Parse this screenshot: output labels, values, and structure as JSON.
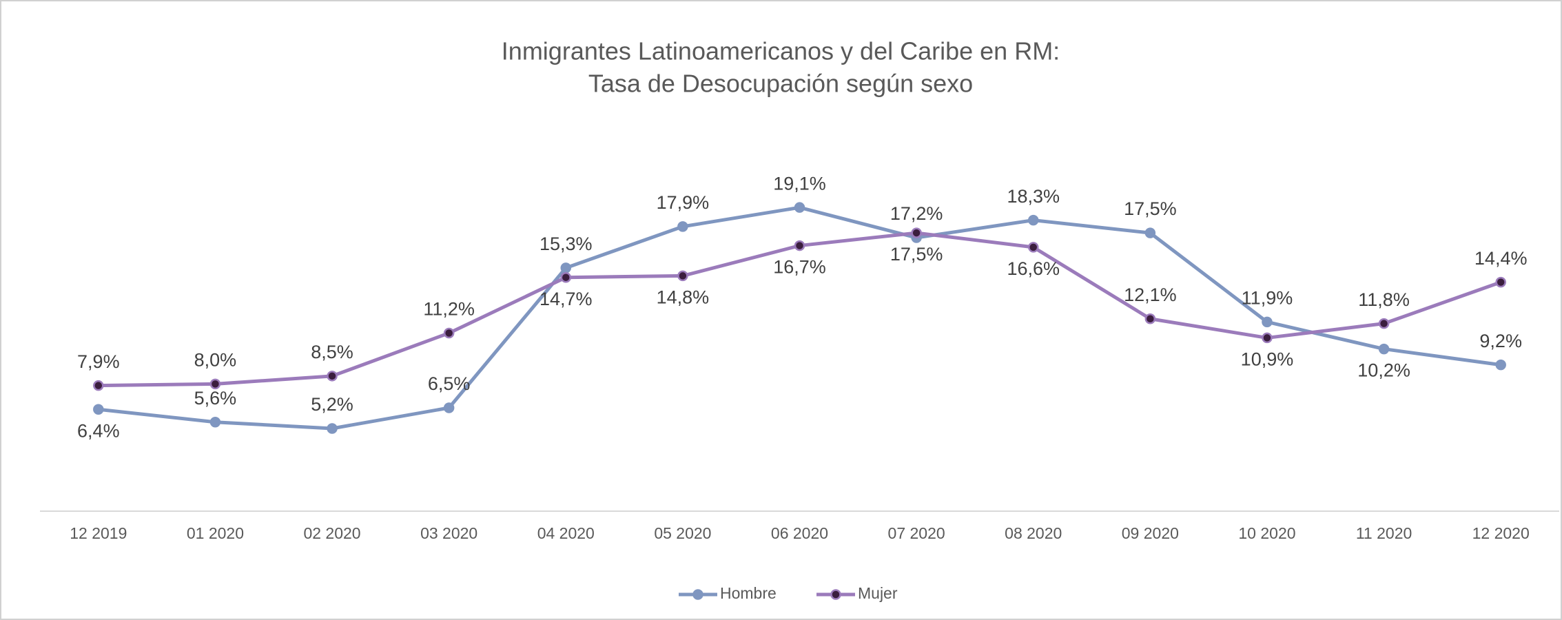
{
  "chart_data": {
    "type": "line",
    "title": "Inmigrantes Latinoamericanos y del Caribe en RM:",
    "subtitle": "Tasa de Desocupación según sexo",
    "categories": [
      "12 2019",
      "01 2020",
      "02 2020",
      "03 2020",
      "04 2020",
      "05 2020",
      "06 2020",
      "07 2020",
      "08 2020",
      "09 2020",
      "10 2020",
      "11 2020",
      "12 2020"
    ],
    "series": [
      {
        "name": "Hombre",
        "color": "#7f96c0",
        "values": [
          6.4,
          5.6,
          5.2,
          6.5,
          15.3,
          17.9,
          19.1,
          17.2,
          18.3,
          17.5,
          11.9,
          10.2,
          9.2
        ],
        "value_labels": [
          "6,4%",
          "5,6%",
          "5,2%",
          "6,5%",
          "15,3%",
          "17,9%",
          "19,1%",
          "17,2%",
          "18,3%",
          "17,5%",
          "11,9%",
          "10,2%",
          "9,2%"
        ]
      },
      {
        "name": "Mujer",
        "color": "#9b7bbb",
        "values": [
          7.9,
          8.0,
          8.5,
          11.2,
          14.7,
          14.8,
          16.7,
          17.5,
          16.6,
          12.1,
          10.9,
          11.8,
          14.4
        ],
        "value_labels": [
          "7,9%",
          "8,0%",
          "8,5%",
          "11,2%",
          "14,7%",
          "14,8%",
          "16,7%",
          "17,5%",
          "16,6%",
          "12,1%",
          "10,9%",
          "11,8%",
          "14,4%"
        ]
      }
    ],
    "ylim": [
      0,
      25
    ],
    "legend": "bottom"
  }
}
